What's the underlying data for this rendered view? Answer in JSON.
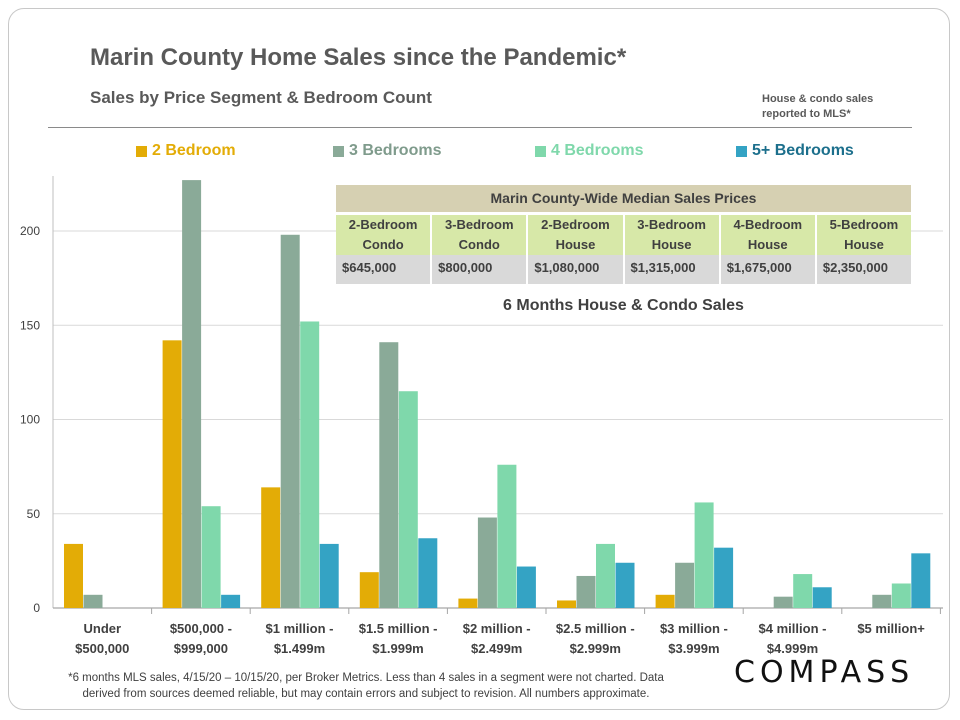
{
  "header": {
    "title": "Marin County Home Sales since the Pandemic*",
    "subtitle": "Sales by Price Segment & Bedroom Count",
    "note_line1": "House & condo sales",
    "note_line2": "reported to MLS*"
  },
  "median_table": {
    "title": "Marin County-Wide  Median Sales Prices",
    "columns": [
      {
        "line1": "2-Bedroom",
        "line2": "Condo",
        "price": "$645,000"
      },
      {
        "line1": "3-Bedroom",
        "line2": "Condo",
        "price": "$800,000"
      },
      {
        "line1": "2-Bedroom",
        "line2": "House",
        "price": "$1,080,000"
      },
      {
        "line1": "3-Bedroom",
        "line2": "House",
        "price": "$1,315,000"
      },
      {
        "line1": "4-Bedroom",
        "line2": "House",
        "price": "$1,675,000"
      },
      {
        "line1": "5-Bedroom",
        "line2": "House",
        "price": "$2,350,000"
      }
    ]
  },
  "chart_subtitle": "6 Months House & Condo Sales",
  "chart_data": {
    "type": "bar",
    "title": "6 Months House & Condo Sales",
    "categories": [
      [
        "Under",
        "$500,000"
      ],
      [
        "$500,000 -",
        "$999,000"
      ],
      [
        "$1 million -",
        "$1.499m"
      ],
      [
        "$1.5 million -",
        "$1.999m"
      ],
      [
        "$2 million -",
        "$2.499m"
      ],
      [
        "$2.5 million -",
        "$2.999m"
      ],
      [
        "$3 million -",
        "$3.999m"
      ],
      [
        "$4 million -",
        "$4.999m"
      ],
      [
        "$5 million+",
        ""
      ]
    ],
    "series": [
      {
        "name": "2 Bedroom",
        "color": "#e3ac06",
        "values": [
          34,
          142,
          64,
          19,
          5,
          4,
          7,
          null,
          null
        ]
      },
      {
        "name": "3 Bedrooms",
        "color": "#8aaa98",
        "values": [
          7,
          227,
          198,
          141,
          48,
          17,
          24,
          6,
          7
        ]
      },
      {
        "name": "4 Bedrooms",
        "color": "#7fd8ab",
        "values": [
          null,
          54,
          152,
          115,
          76,
          34,
          56,
          18,
          13
        ]
      },
      {
        "name": "5+ Bedrooms",
        "color": "#34a3c4",
        "values": [
          null,
          7,
          34,
          37,
          22,
          24,
          32,
          11,
          29
        ]
      }
    ],
    "yticks": [
      0,
      50,
      100,
      150,
      200
    ],
    "ylim": [
      0,
      230
    ],
    "grid": true,
    "legend": "top"
  },
  "legend_text_colors": [
    "#e3ac06",
    "#7f9b8c",
    "#7fd8ab",
    "#1c6f8c"
  ],
  "footnote": {
    "line1": "*6 months MLS sales,  4/15/20 – 10/15/20, per Broker Metrics. Less than 4 sales in a segment were not charted. Data",
    "line2": "derived from sources deemed reliable, but may contain errors and subject to revision. All numbers approximate."
  },
  "brand": {
    "logo_text": "COMPASS"
  }
}
